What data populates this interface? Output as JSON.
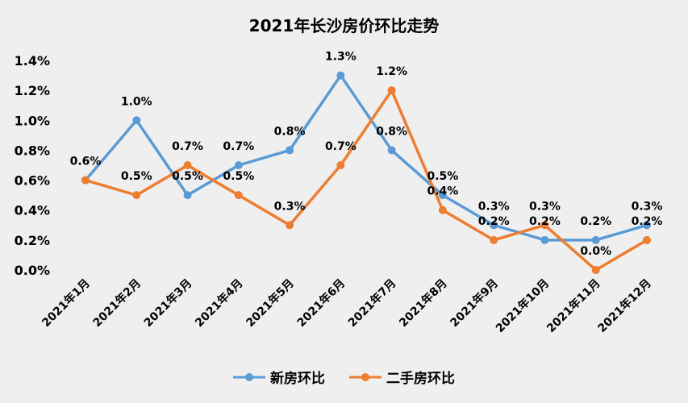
{
  "chart_data": {
    "type": "line",
    "title": "2021年长沙房价环比走势",
    "categories": [
      "2021年1月",
      "2021年2月",
      "2021年3月",
      "2021年4月",
      "2021年5月",
      "2021年6月",
      "2021年7月",
      "2021年8月",
      "2021年9月",
      "2021年10月",
      "2021年11月",
      "2021年12月"
    ],
    "series": [
      {
        "name": "新房环比",
        "color": "#5b9bd5",
        "values": [
          0.6,
          1.0,
          0.5,
          0.7,
          0.8,
          1.3,
          0.8,
          0.5,
          0.3,
          0.2,
          0.2,
          0.3
        ]
      },
      {
        "name": "二手房环比",
        "color": "#ed7d31",
        "values": [
          0.6,
          0.5,
          0.7,
          0.5,
          0.3,
          0.7,
          1.2,
          0.4,
          0.2,
          0.3,
          0.0,
          0.2
        ]
      }
    ],
    "unit": "%",
    "ylim": [
      0,
      1.4
    ],
    "yticks": [
      "0.0%",
      "0.2%",
      "0.4%",
      "0.6%",
      "0.8%",
      "1.0%",
      "1.2%",
      "1.4%"
    ],
    "grid": false,
    "legend": "bottom"
  }
}
